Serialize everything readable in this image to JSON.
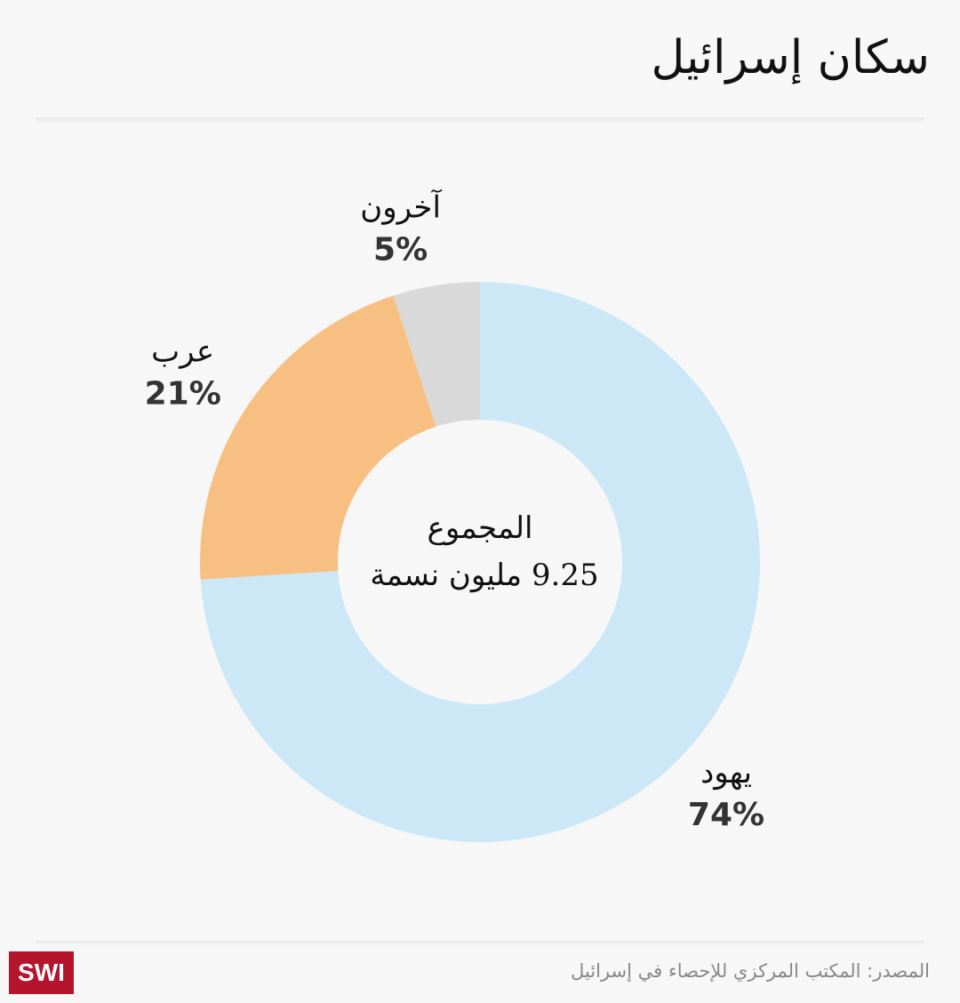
{
  "title": "سكان إسرائيل",
  "source": "المصدر: المكتب المركزي للإحصاء في إسرائيل",
  "logo_text": "SWI",
  "center": {
    "line1": "المجموع",
    "line2": "9.25 مليون نسمة"
  },
  "colors": {
    "jews": "#cce7f6",
    "arabs": "#f7c082",
    "others": "#d9d9d9",
    "logo": "#b4142c"
  },
  "chart_data": {
    "type": "pie",
    "title": "سكان إسرائيل",
    "total_label": "9.25 مليون نسمة",
    "slices": [
      {
        "name": "يهود",
        "value": 74,
        "label": "74%",
        "color": "#cce7f6"
      },
      {
        "name": "عرب",
        "value": 21,
        "label": "21%",
        "color": "#f7c082"
      },
      {
        "name": "آخرون",
        "value": 5,
        "label": "5%",
        "color": "#d9d9d9"
      }
    ]
  }
}
